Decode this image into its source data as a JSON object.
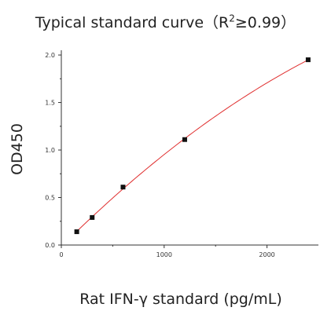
{
  "chart_data": {
    "type": "scatter",
    "title_main": "Typical standard curve（R",
    "title_sup": "2",
    "title_rest": "≥0.99）",
    "xlabel": "Rat IFN-γ standard (pg/mL)",
    "ylabel": "OD450",
    "xlim": [
      0,
      2500
    ],
    "ylim": [
      0,
      2.05
    ],
    "xticks": [
      0,
      1000,
      2000
    ],
    "xtick_labels": [
      "0",
      "1000",
      "2000"
    ],
    "yticks": [
      0,
      0.5,
      1.0,
      1.5,
      2.0
    ],
    "ytick_labels": [
      "0.0",
      "0.5",
      "1.0",
      "1.5",
      "2.0"
    ],
    "grid": false,
    "series": [
      {
        "x": [
          150,
          300,
          600,
          1200,
          2400
        ],
        "y": [
          0.14,
          0.29,
          0.61,
          1.11,
          1.95
        ]
      }
    ],
    "point_color": "#111111",
    "curve_color": "#e03030"
  }
}
